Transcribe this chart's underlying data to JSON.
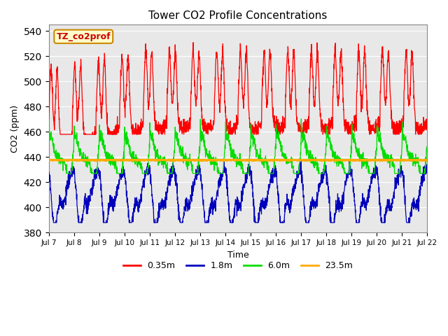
{
  "title": "Tower CO2 Profile Concentrations",
  "xlabel": "Time",
  "ylabel": "CO2 (ppm)",
  "ylim": [
    380,
    545
  ],
  "yticks": [
    380,
    400,
    420,
    440,
    460,
    480,
    500,
    520,
    540
  ],
  "xtick_days": [
    7,
    8,
    9,
    10,
    11,
    12,
    13,
    14,
    15,
    16,
    17,
    18,
    19,
    20,
    21,
    22
  ],
  "colors": {
    "red": "#ff0000",
    "blue": "#0000bb",
    "green": "#00dd00",
    "orange": "#ffaa00"
  },
  "orange_flat": 437.5,
  "label_box_text": "TZ_co2prof",
  "label_box_facecolor": "#ffffcc",
  "label_box_edgecolor": "#cc8800",
  "bg_color": "#e8e8e8",
  "legend_labels": [
    "0.35m",
    "1.8m",
    "6.0m",
    "23.5m"
  ],
  "legend_colors": [
    "#ff0000",
    "#0000bb",
    "#00dd00",
    "#ffaa00"
  ]
}
